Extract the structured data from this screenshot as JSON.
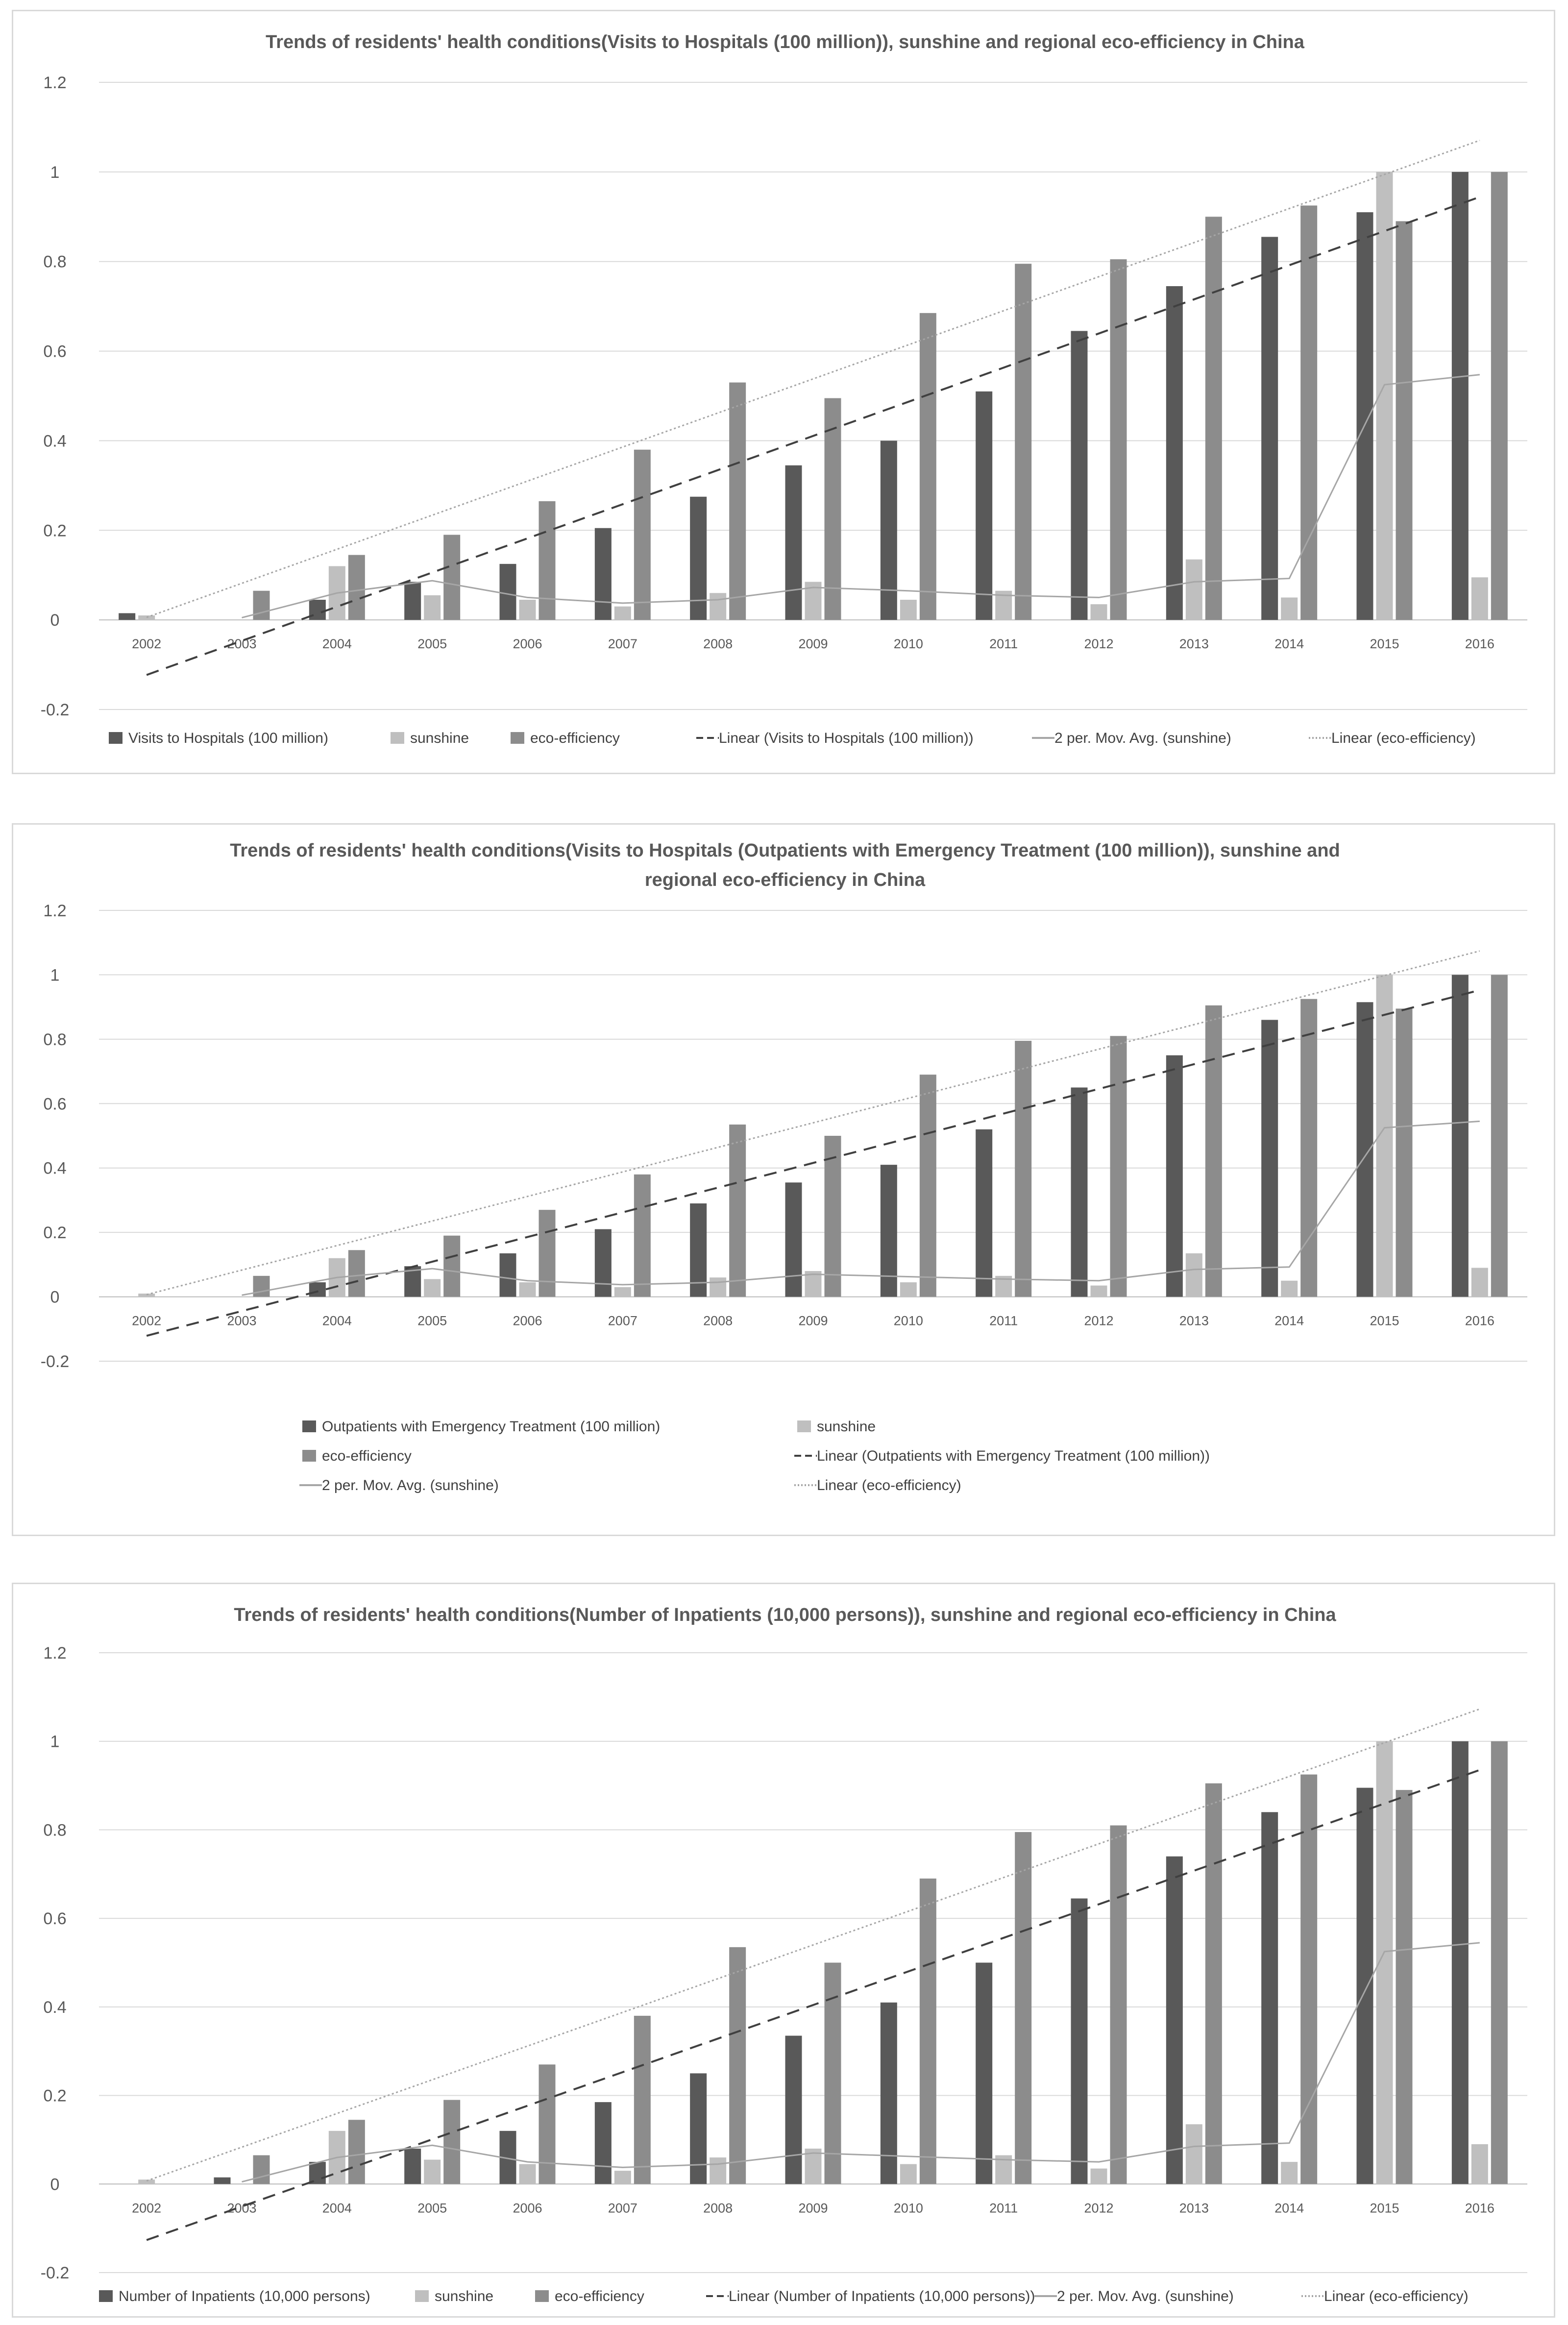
{
  "chart_data": [
    {
      "type": "bar",
      "title": "Trends of residents' health conditions(Visits to Hospitals (100 million)), sunshine and regional eco-efficiency in China",
      "xlabel": "",
      "ylabel": "",
      "ylim": [
        -0.2,
        1.2
      ],
      "y_ticks": [
        "1.2",
        "1",
        "0.8",
        "0.6",
        "0.4",
        "0.2",
        "0",
        "-0.2"
      ],
      "y_tick_values": [
        1.2,
        1,
        0.8,
        0.6,
        0.4,
        0.2,
        0,
        -0.2
      ],
      "categories": [
        "2002",
        "2003",
        "2004",
        "2005",
        "2006",
        "2007",
        "2008",
        "2009",
        "2010",
        "2011",
        "2012",
        "2013",
        "2014",
        "2015",
        "2016"
      ],
      "series": [
        {
          "name": "Visits to Hospitals (100 million)",
          "color": "#595959",
          "values": [
            0.015,
            0,
            0.045,
            0.085,
            0.125,
            0.205,
            0.275,
            0.345,
            0.4,
            0.51,
            0.645,
            0.745,
            0.855,
            0.91,
            1.0
          ]
        },
        {
          "name": "sunshine",
          "color": "#bfbfbf",
          "values": [
            0.01,
            0,
            0.12,
            0.055,
            0.045,
            0.03,
            0.06,
            0.085,
            0.045,
            0.065,
            0.035,
            0.135,
            0.05,
            1.0,
            0.095
          ]
        },
        {
          "name": "eco-efficiency",
          "color": "#8c8c8c",
          "values": [
            0,
            0.065,
            0.145,
            0.19,
            0.265,
            0.38,
            0.53,
            0.495,
            0.685,
            0.795,
            0.805,
            0.9,
            0.925,
            0.89,
            1.0
          ]
        }
      ],
      "legend": [
        "Visits to Hospitals (100 million)",
        "sunshine",
        "eco-efficiency",
        "Linear (Visits to Hospitals (100 million))",
        "2 per. Mov. Avg. (sunshine)",
        "Linear (eco-efficiency)"
      ],
      "legend_placement": "bottom",
      "grid": true
    },
    {
      "type": "bar",
      "title": "Trends of residents' health conditions(Visits to Hospitals (Outpatients with Emergency Treatment (100 million)), sunshine and",
      "title_line2": "regional eco-efficiency in China",
      "xlabel": "",
      "ylabel": "",
      "ylim": [
        -0.2,
        1.2
      ],
      "y_ticks": [
        "1.2",
        "1",
        "0.8",
        "0.6",
        "0.4",
        "0.2",
        "0",
        "-0.2"
      ],
      "y_tick_values": [
        1.2,
        1,
        0.8,
        0.6,
        0.4,
        0.2,
        0,
        -0.2
      ],
      "categories": [
        "2002",
        "2003",
        "2004",
        "2005",
        "2006",
        "2007",
        "2008",
        "2009",
        "2010",
        "2011",
        "2012",
        "2013",
        "2014",
        "2015",
        "2016"
      ],
      "series": [
        {
          "name": "Outpatients with Emergency Treatment  (100 million)",
          "color": "#595959",
          "values": [
            0,
            0,
            0.045,
            0.095,
            0.135,
            0.21,
            0.29,
            0.355,
            0.41,
            0.52,
            0.65,
            0.75,
            0.86,
            0.915,
            1.0
          ]
        },
        {
          "name": "sunshine",
          "color": "#bfbfbf",
          "values": [
            0.01,
            0,
            0.12,
            0.055,
            0.045,
            0.03,
            0.06,
            0.08,
            0.045,
            0.065,
            0.035,
            0.135,
            0.05,
            1.0,
            0.09
          ]
        },
        {
          "name": "eco-efficiency",
          "color": "#8c8c8c",
          "values": [
            0,
            0.065,
            0.145,
            0.19,
            0.27,
            0.38,
            0.535,
            0.5,
            0.69,
            0.795,
            0.81,
            0.905,
            0.925,
            0.895,
            1.0
          ]
        }
      ],
      "legend": [
        "Outpatients with Emergency Treatment  (100 million)",
        "sunshine",
        "eco-efficiency",
        "Linear (Outpatients with Emergency Treatment  (100 million))",
        "2 per. Mov. Avg. (sunshine)",
        "Linear (eco-efficiency)"
      ],
      "legend_placement": "bottom",
      "grid": true
    },
    {
      "type": "bar",
      "title": "Trends of residents' health conditions(Number of Inpatients (10,000 persons)), sunshine and regional eco-efficiency in China",
      "xlabel": "",
      "ylabel": "",
      "ylim": [
        -0.2,
        1.2
      ],
      "y_ticks": [
        "1.2",
        "1",
        "0.8",
        "0.6",
        "0.4",
        "0.2",
        "0",
        "-0.2"
      ],
      "y_tick_values": [
        1.2,
        1,
        0.8,
        0.6,
        0.4,
        0.2,
        0,
        -0.2
      ],
      "categories": [
        "2002",
        "2003",
        "2004",
        "2005",
        "2006",
        "2007",
        "2008",
        "2009",
        "2010",
        "2011",
        "2012",
        "2013",
        "2014",
        "2015",
        "2016"
      ],
      "series": [
        {
          "name": "Number of Inpatients (10,000 persons)",
          "color": "#595959",
          "values": [
            0,
            0.015,
            0.05,
            0.08,
            0.12,
            0.185,
            0.25,
            0.335,
            0.41,
            0.5,
            0.645,
            0.74,
            0.84,
            0.895,
            1.0
          ]
        },
        {
          "name": "sunshine",
          "color": "#bfbfbf",
          "values": [
            0.01,
            0,
            0.12,
            0.055,
            0.045,
            0.03,
            0.06,
            0.08,
            0.045,
            0.065,
            0.035,
            0.135,
            0.05,
            1.0,
            0.09
          ]
        },
        {
          "name": "eco-efficiency",
          "color": "#8c8c8c",
          "values": [
            0,
            0.065,
            0.145,
            0.19,
            0.27,
            0.38,
            0.535,
            0.5,
            0.69,
            0.795,
            0.81,
            0.905,
            0.925,
            0.89,
            1.0
          ]
        }
      ],
      "legend": [
        "Number of Inpatients (10,000 persons)",
        "sunshine",
        "eco-efficiency",
        "Linear (Number of Inpatients (10,000 persons))",
        "2 per. Mov. Avg. (sunshine)",
        "Linear (eco-efficiency)"
      ],
      "legend_placement": "bottom",
      "grid": true
    }
  ]
}
